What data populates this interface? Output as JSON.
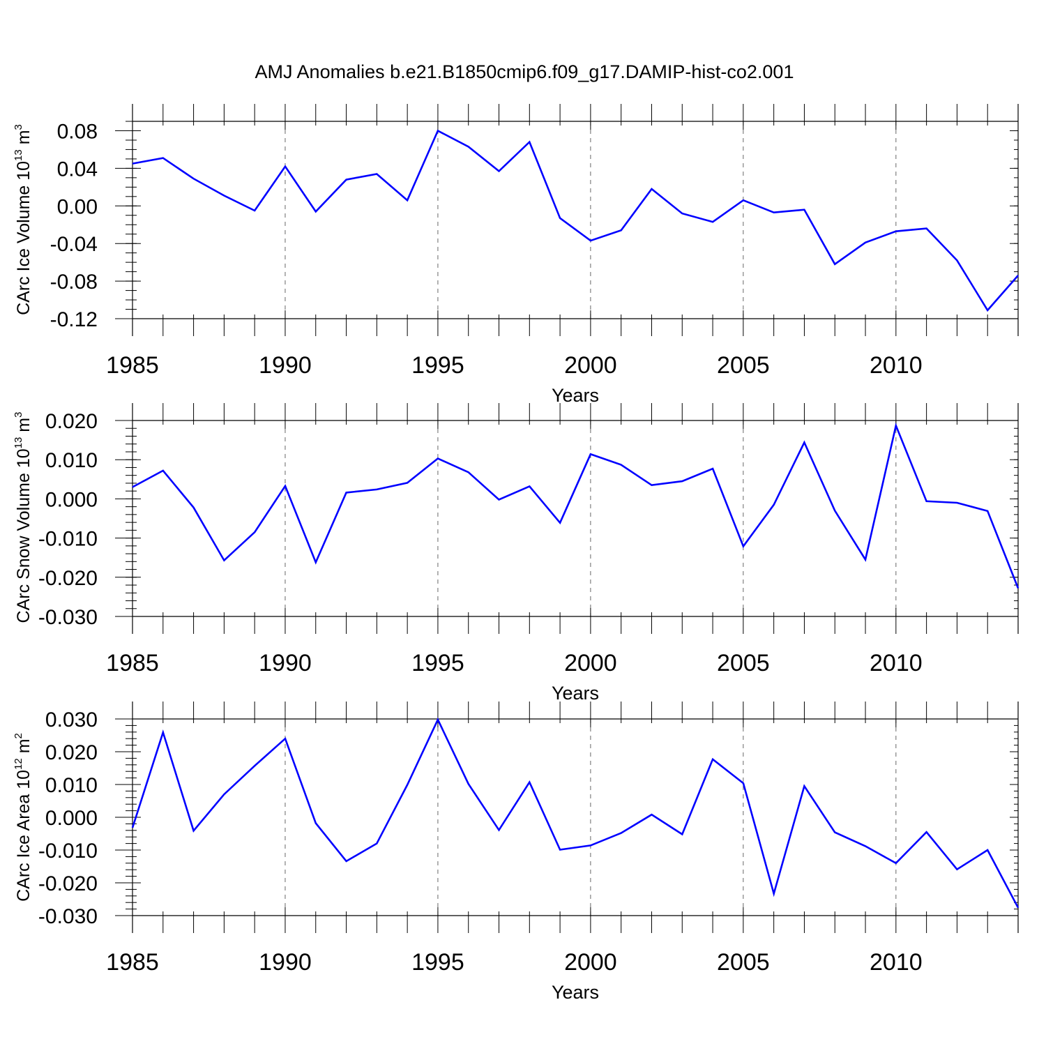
{
  "title": "AMJ Anomalies b.e21.B1850cmip6.f09_g17.DAMIP-hist-co2.001",
  "line_color": "#0000ff",
  "chart_data": [
    {
      "type": "line",
      "ylabel": {
        "main": "CArc Ice Volume 10",
        "exp": "13",
        "unit": " m",
        "unit_exp": "3"
      },
      "xlabel": "Years",
      "xlim": [
        1985,
        2014
      ],
      "ylim": [
        -0.12,
        0.09
      ],
      "x_ticks": [
        1985,
        1990,
        1995,
        2000,
        2005,
        2010
      ],
      "x_tick_labels": [
        "1985",
        "1990",
        "1995",
        "2000",
        "2005",
        "2010"
      ],
      "y_ticks": [
        0.08,
        0.04,
        0.0,
        -0.04,
        -0.08,
        -0.12
      ],
      "y_tick_labels": [
        "0.08",
        "0.04",
        "0.00",
        "-0.04",
        "-0.08",
        "-0.12"
      ],
      "minor_y_step": 0.01,
      "x": [
        1985,
        1986,
        1987,
        1988,
        1989,
        1990,
        1991,
        1992,
        1993,
        1994,
        1995,
        1996,
        1997,
        1998,
        1999,
        2000,
        2001,
        2002,
        2003,
        2004,
        2005,
        2006,
        2007,
        2008,
        2009,
        2010,
        2011,
        2012,
        2013,
        2014
      ],
      "series": [
        {
          "values": [
            0.045,
            0.051,
            0.029,
            0.011,
            -0.005,
            0.042,
            -0.006,
            0.028,
            0.034,
            0.006,
            0.08,
            0.063,
            0.037,
            0.068,
            -0.013,
            -0.037,
            -0.026,
            0.018,
            -0.008,
            -0.017,
            0.006,
            -0.007,
            -0.004,
            -0.062,
            -0.039,
            -0.027,
            -0.024,
            -0.058,
            -0.111,
            -0.074
          ]
        }
      ]
    },
    {
      "type": "line",
      "ylabel": {
        "main": "CArc Snow Volume 10",
        "exp": "13",
        "unit": " m",
        "unit_exp": "3"
      },
      "xlabel": "Years",
      "xlim": [
        1985,
        2014
      ],
      "ylim": [
        -0.03,
        0.02
      ],
      "x_ticks": [
        1985,
        1990,
        1995,
        2000,
        2005,
        2010
      ],
      "x_tick_labels": [
        "1985",
        "1990",
        "1995",
        "2000",
        "2005",
        "2010"
      ],
      "y_ticks": [
        0.02,
        0.01,
        0.0,
        -0.01,
        -0.02,
        -0.03
      ],
      "y_tick_labels": [
        "0.020",
        "0.010",
        "0.000",
        "-0.010",
        "-0.020",
        "-0.030"
      ],
      "minor_y_step": 0.002,
      "x": [
        1985,
        1986,
        1987,
        1988,
        1989,
        1990,
        1991,
        1992,
        1993,
        1994,
        1995,
        1996,
        1997,
        1998,
        1999,
        2000,
        2001,
        2002,
        2003,
        2004,
        2005,
        2006,
        2007,
        2008,
        2009,
        2010,
        2011,
        2012,
        2013,
        2014
      ],
      "series": [
        {
          "values": [
            0.003,
            0.0072,
            -0.0022,
            -0.0157,
            -0.0085,
            0.0033,
            -0.0162,
            0.0016,
            0.0024,
            0.0041,
            0.0103,
            0.0068,
            -0.0002,
            0.0032,
            -0.0061,
            0.0114,
            0.0087,
            0.0035,
            0.0045,
            0.0077,
            -0.0121,
            -0.0015,
            0.0144,
            -0.003,
            -0.0155,
            0.0187,
            -0.0006,
            -0.001,
            -0.0031,
            -0.0228
          ]
        }
      ]
    },
    {
      "type": "line",
      "ylabel": {
        "main": "CArc Ice Area 10",
        "exp": "12",
        "unit": " m",
        "unit_exp": "2"
      },
      "xlabel": "Years",
      "xlim": [
        1985,
        2014
      ],
      "ylim": [
        -0.03,
        0.03
      ],
      "x_ticks": [
        1985,
        1990,
        1995,
        2000,
        2005,
        2010
      ],
      "x_tick_labels": [
        "1985",
        "1990",
        "1995",
        "2000",
        "2005",
        "2010"
      ],
      "y_ticks": [
        0.03,
        0.02,
        0.01,
        0.0,
        -0.01,
        -0.02,
        -0.03
      ],
      "y_tick_labels": [
        "0.030",
        "0.020",
        "0.010",
        "0.000",
        "-0.010",
        "-0.020",
        "-0.030"
      ],
      "minor_y_step": 0.002,
      "x": [
        1985,
        1986,
        1987,
        1988,
        1989,
        1990,
        1991,
        1992,
        1993,
        1994,
        1995,
        1996,
        1997,
        1998,
        1999,
        2000,
        2001,
        2002,
        2003,
        2004,
        2005,
        2006,
        2007,
        2008,
        2009,
        2010,
        2011,
        2012,
        2013,
        2014
      ],
      "series": [
        {
          "values": [
            -0.0032,
            0.0259,
            -0.0041,
            0.007,
            0.0157,
            0.024,
            -0.0018,
            -0.0134,
            -0.008,
            0.0099,
            0.0298,
            0.0102,
            -0.0039,
            0.0107,
            -0.0099,
            -0.0086,
            -0.0048,
            0.0008,
            -0.0052,
            0.0177,
            0.0104,
            -0.0233,
            0.0095,
            -0.0046,
            -0.0088,
            -0.014,
            -0.0045,
            -0.0159,
            -0.01,
            -0.0276
          ]
        }
      ]
    }
  ]
}
